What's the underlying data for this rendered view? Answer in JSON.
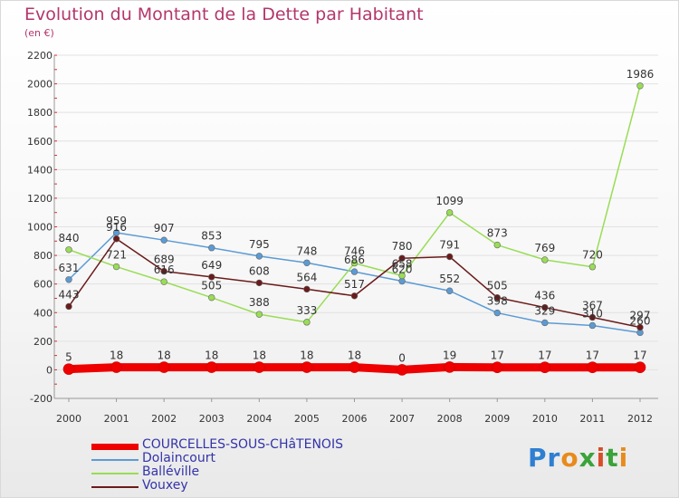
{
  "title": "Evolution du Montant de la Dette par Habitant",
  "unit": "(en €)",
  "logo": "Proxiti",
  "chart_data": {
    "type": "line",
    "title": "Evolution du Montant de la Dette par Habitant",
    "ylabel": "(en €)",
    "ylim": [
      -200,
      2200
    ],
    "yticks": [
      -200,
      0,
      200,
      400,
      600,
      800,
      1000,
      1200,
      1400,
      1600,
      1800,
      2000,
      2200
    ],
    "grid": true,
    "legend": "bottom-left",
    "x": [
      "2000",
      "2001",
      "2002",
      "2003",
      "2004",
      "2005",
      "2006",
      "2007",
      "2008",
      "2009",
      "2010",
      "2011",
      "2012"
    ],
    "series": [
      {
        "name": "COURCELLES-SOUS-CHâTENOIS",
        "color": "#ee0000",
        "values": [
          5,
          18,
          18,
          18,
          18,
          18,
          18,
          0,
          19,
          17,
          17,
          17,
          17
        ]
      },
      {
        "name": "Dolaincourt",
        "color": "#5b9bd5",
        "values": [
          631,
          959,
          907,
          853,
          795,
          748,
          686,
          620,
          552,
          398,
          329,
          310,
          260
        ]
      },
      {
        "name": "Balléville",
        "color": "#99dd55",
        "values": [
          840,
          721,
          616,
          505,
          388,
          333,
          746,
          658,
          1099,
          873,
          769,
          720,
          1986
        ]
      },
      {
        "name": "Vouxey",
        "color": "#6b1a1a",
        "values": [
          443,
          916,
          689,
          649,
          608,
          564,
          517,
          780,
          791,
          505,
          436,
          367,
          297
        ]
      }
    ]
  }
}
